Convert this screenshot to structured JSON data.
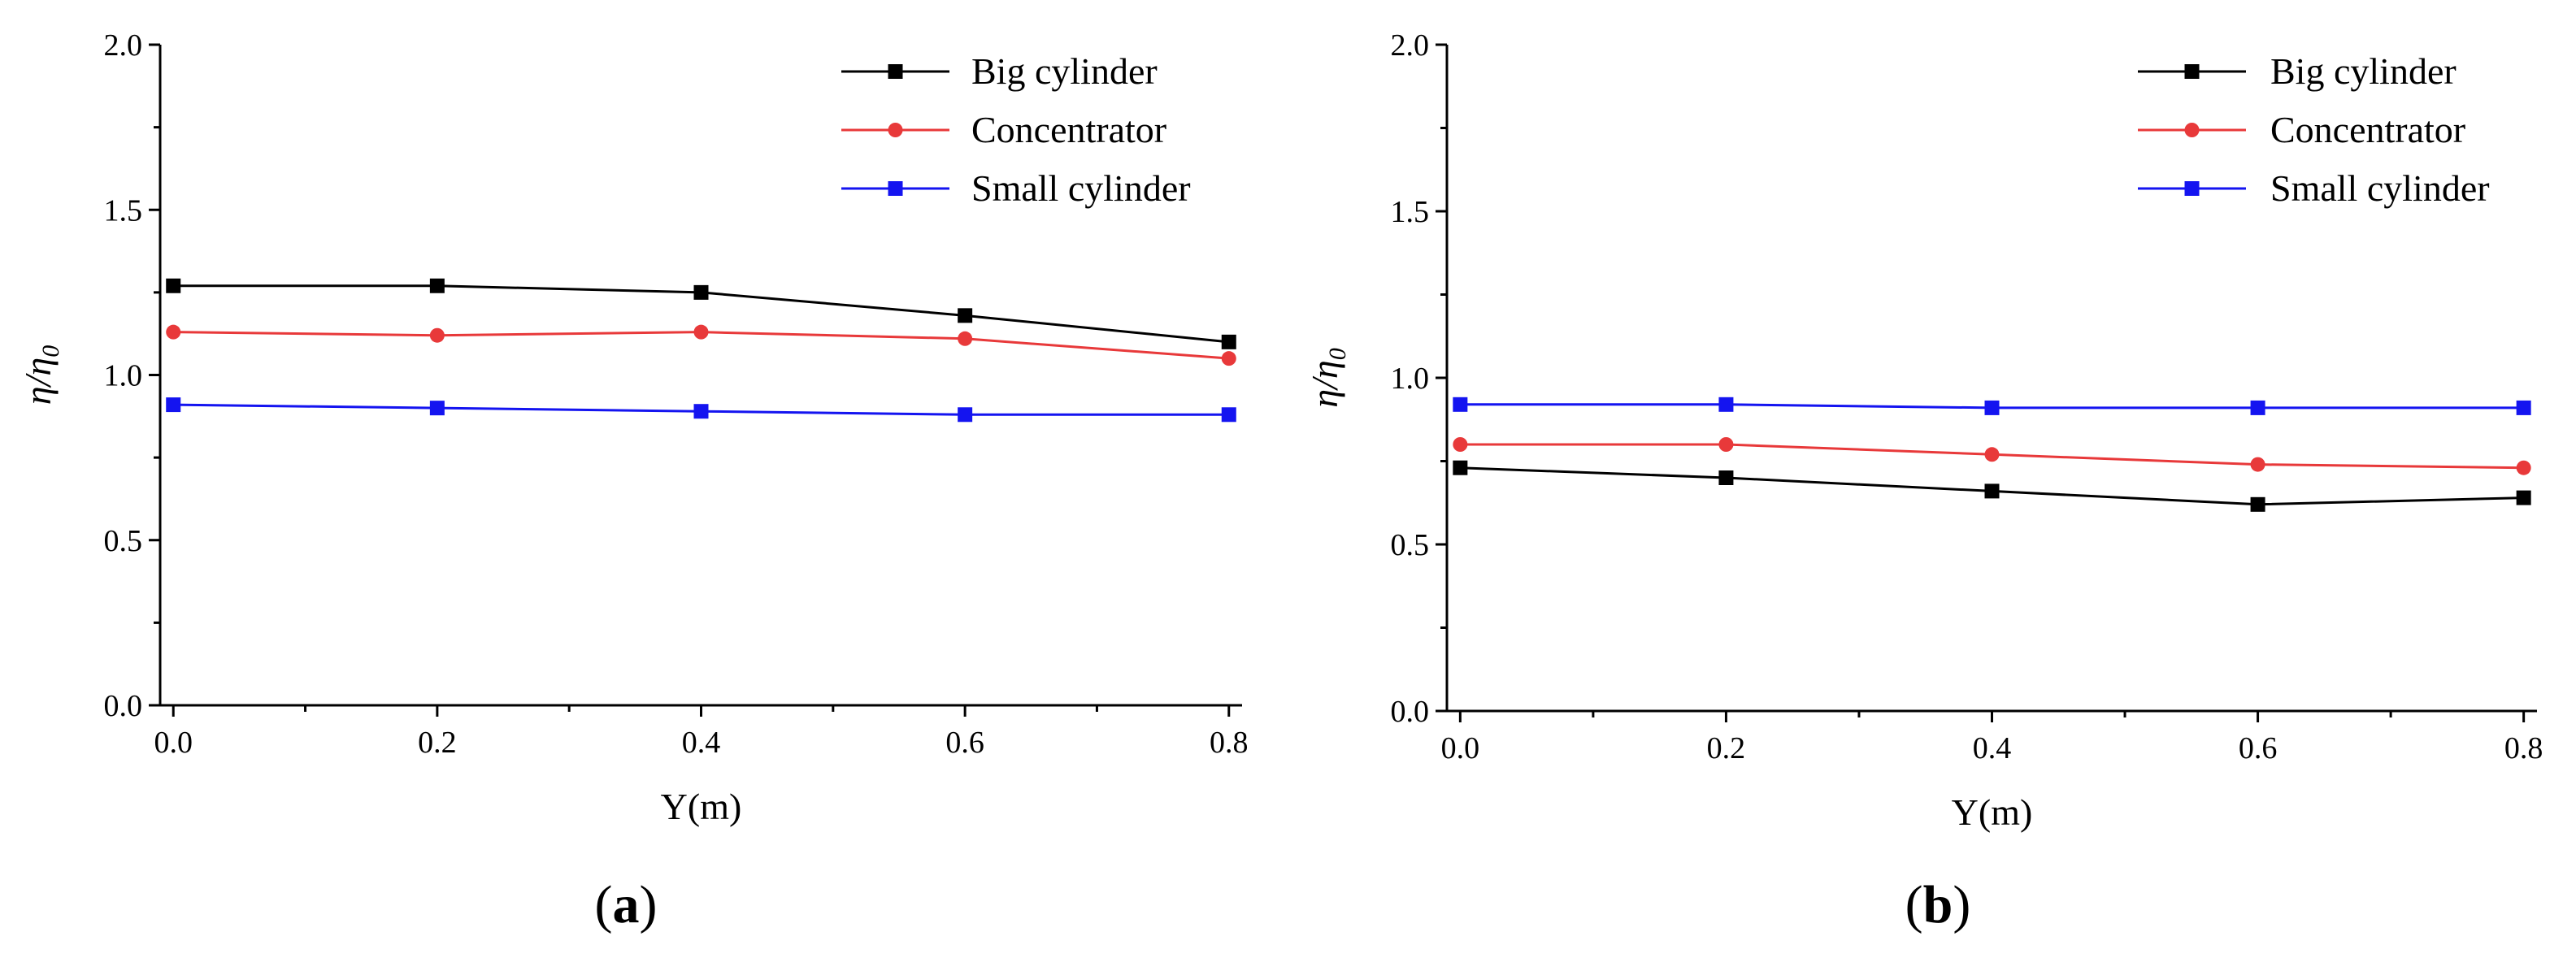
{
  "chart_data": [
    {
      "type": "line",
      "panel_label": "a",
      "xlabel": "Y(m)",
      "ylabel": {
        "base": "η/η",
        "sub": "0"
      },
      "x": [
        0.0,
        0.2,
        0.4,
        0.6,
        0.8
      ],
      "xlim": [
        -0.01,
        0.81
      ],
      "ylim": [
        0.0,
        2.0
      ],
      "xticks": [
        "0.0",
        "0.2",
        "0.4",
        "0.6",
        "0.8"
      ],
      "yticks": [
        "0.0",
        "0.5",
        "1.0",
        "1.5",
        "2.0"
      ],
      "grid": false,
      "legend_position": "top-right",
      "series": [
        {
          "name": "Big cylinder",
          "color": "#000000",
          "marker": "square",
          "values": [
            1.27,
            1.27,
            1.25,
            1.18,
            1.1
          ]
        },
        {
          "name": "Concentrator",
          "color": "#e8393a",
          "marker": "circle",
          "values": [
            1.13,
            1.12,
            1.13,
            1.11,
            1.05
          ]
        },
        {
          "name": "Small cylinder",
          "color": "#1414f0",
          "marker": "square",
          "values": [
            0.91,
            0.9,
            0.89,
            0.88,
            0.88
          ]
        }
      ]
    },
    {
      "type": "line",
      "panel_label": "b",
      "xlabel": "Y(m)",
      "ylabel": {
        "base": "η/η",
        "sub": "0"
      },
      "x": [
        0.0,
        0.2,
        0.4,
        0.6,
        0.8
      ],
      "xlim": [
        -0.01,
        0.81
      ],
      "ylim": [
        0.0,
        2.0
      ],
      "xticks": [
        "0.0",
        "0.2",
        "0.4",
        "0.6",
        "0.8"
      ],
      "yticks": [
        "0.0",
        "0.5",
        "1.0",
        "1.5",
        "2.0"
      ],
      "grid": false,
      "legend_position": "top-right",
      "series": [
        {
          "name": "Big cylinder",
          "color": "#000000",
          "marker": "square",
          "values": [
            0.73,
            0.7,
            0.66,
            0.62,
            0.64
          ]
        },
        {
          "name": "Concentrator",
          "color": "#e8393a",
          "marker": "circle",
          "values": [
            0.8,
            0.8,
            0.77,
            0.74,
            0.73
          ]
        },
        {
          "name": "Small cylinder",
          "color": "#1414f0",
          "marker": "square",
          "values": [
            0.92,
            0.92,
            0.91,
            0.91,
            0.91
          ]
        }
      ]
    }
  ]
}
